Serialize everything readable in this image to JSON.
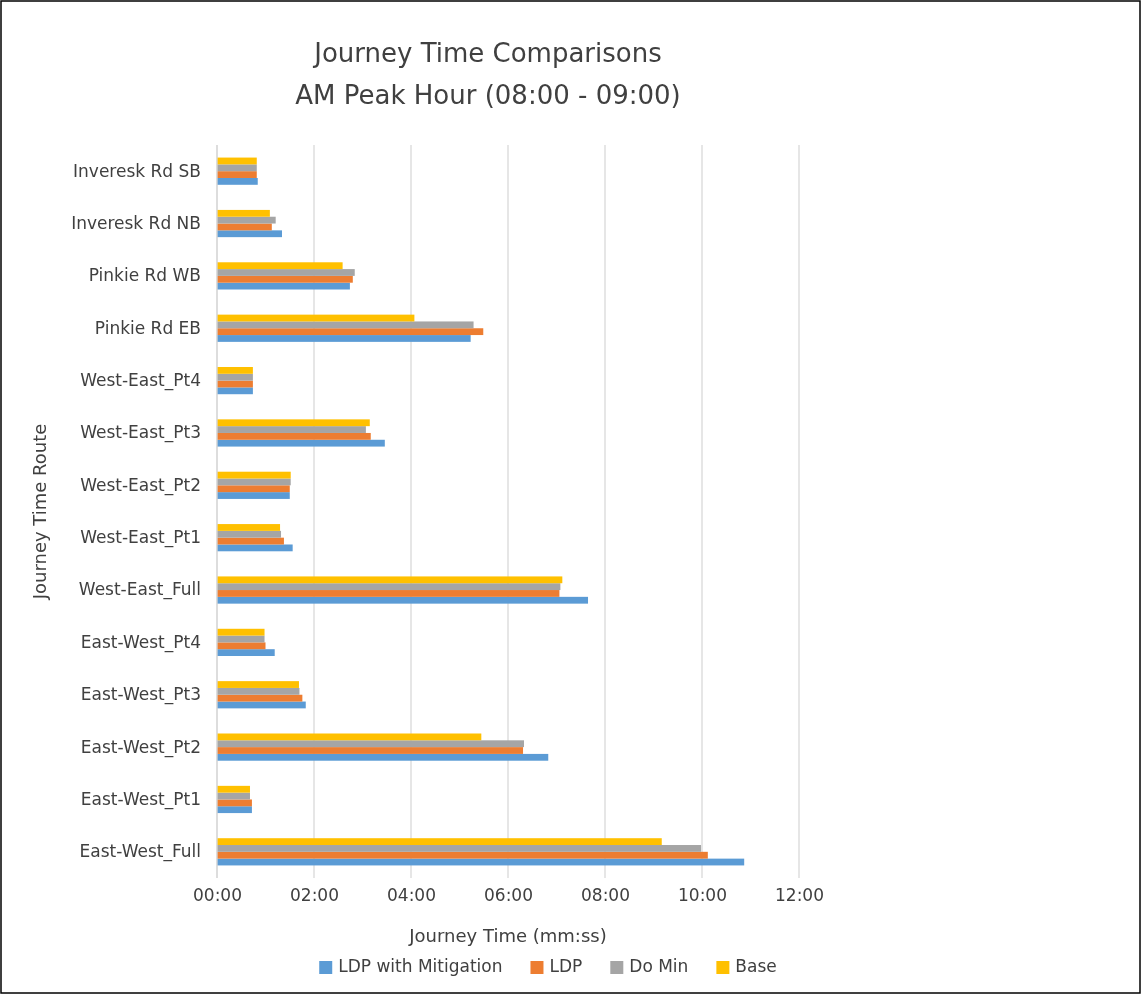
{
  "chart_data": {
    "type": "bar",
    "orientation": "horizontal",
    "title": "Journey Time Comparisons",
    "subtitle": "AM Peak Hour (08:00 - 09:00)",
    "xlabel": "Journey Time (mm:ss)",
    "ylabel": "Journey Time Route",
    "categories": [
      "Inveresk Rd SB",
      "Inveresk Rd NB",
      "Pinkie Rd WB",
      "Pinkie Rd EB",
      "West-East_Pt4",
      "West-East_Pt3",
      "West-East_Pt2",
      "West-East_Pt1",
      "West-East_Full",
      "East-West_Pt4",
      "East-West_Pt3",
      "East-West_Pt2",
      "East-West_Pt1",
      "East-West_Full"
    ],
    "series": [
      {
        "name": "LDP with Mitigation",
        "color": "#5b9bd5",
        "values": [
          0.84,
          1.34,
          2.74,
          5.23,
          0.74,
          3.46,
          1.5,
          1.56,
          7.65,
          1.19,
          1.83,
          6.83,
          0.72,
          10.87
        ]
      },
      {
        "name": "LDP",
        "color": "#ed7d31",
        "values": [
          0.82,
          1.13,
          2.8,
          5.49,
          0.74,
          3.17,
          1.5,
          1.38,
          7.06,
          1.0,
          1.76,
          6.31,
          0.72,
          10.12
        ]
      },
      {
        "name": "Do Min",
        "color": "#a5a5a5",
        "values": [
          0.82,
          1.21,
          2.84,
          5.29,
          0.74,
          3.07,
          1.52,
          1.32,
          7.08,
          0.98,
          1.7,
          6.33,
          0.68,
          9.98
        ]
      },
      {
        "name": "Base",
        "color": "#ffc000",
        "values": [
          0.82,
          1.09,
          2.59,
          4.07,
          0.74,
          3.15,
          1.52,
          1.3,
          7.12,
          0.98,
          1.69,
          5.45,
          0.68,
          9.17
        ]
      }
    ],
    "xlim": [
      0,
      12
    ],
    "xticks": [
      {
        "value": 0,
        "label": "00:00"
      },
      {
        "value": 2,
        "label": "02:00"
      },
      {
        "value": 4,
        "label": "04:00"
      },
      {
        "value": 6,
        "label": "06:00"
      },
      {
        "value": 8,
        "label": "08:00"
      },
      {
        "value": 10,
        "label": "10:00"
      },
      {
        "value": 12,
        "label": "12:00"
      }
    ],
    "grid": "x",
    "legend": "bottom"
  }
}
